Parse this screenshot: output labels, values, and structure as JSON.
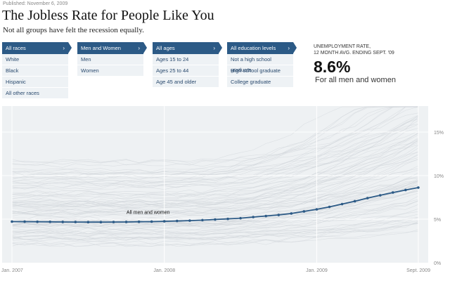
{
  "header": {
    "published": "Published: November 6, 2009",
    "title": "The Jobless Rate for People Like You",
    "subtitle": "Not all groups have felt the recession equally."
  },
  "filters": [
    {
      "selected": "All races",
      "options": [
        "White",
        "Black",
        "Hispanic",
        "All other races"
      ]
    },
    {
      "selected": "Men and Women",
      "options": [
        "Men",
        "Women"
      ]
    },
    {
      "selected": "All ages",
      "options": [
        "Ages 15 to 24",
        "Ages 25 to 44",
        "Age 45 and older"
      ]
    },
    {
      "selected": "All education levels",
      "options": [
        "Not a high school graduate",
        "High school graduate",
        "College graduate"
      ]
    }
  ],
  "icons": {
    "chevron": "›"
  },
  "stat": {
    "label_line1": "UNEMPLOYMENT RATE,",
    "label_line2": "12 MONTH AVG. ENDING SEPT. '09",
    "value": "8.6%",
    "description": "For all men and women"
  },
  "colors": {
    "accent": "#2c5a86",
    "chart_bg": "#eef1f3",
    "menu_item_bg": "#eef2f5"
  },
  "chart_data": {
    "type": "line",
    "title": "",
    "xlabel": "",
    "ylabel": "Unemployment rate",
    "ylim": [
      0,
      18
    ],
    "yticks": [
      {
        "value": 0,
        "label": "0%"
      },
      {
        "value": 5,
        "label": "5%"
      },
      {
        "value": 10,
        "label": "10%"
      },
      {
        "value": 15,
        "label": "15%"
      }
    ],
    "xticks": [
      {
        "index": 0,
        "label": "Jan. 2007"
      },
      {
        "index": 12,
        "label": "Jan. 2008"
      },
      {
        "index": 24,
        "label": "Jan. 2009"
      },
      {
        "index": 32,
        "label": "Sept. 2009"
      }
    ],
    "grid": true,
    "x": [
      "2007-01",
      "2007-02",
      "2007-03",
      "2007-04",
      "2007-05",
      "2007-06",
      "2007-07",
      "2007-08",
      "2007-09",
      "2007-10",
      "2007-11",
      "2007-12",
      "2008-01",
      "2008-02",
      "2008-03",
      "2008-04",
      "2008-05",
      "2008-06",
      "2008-07",
      "2008-08",
      "2008-09",
      "2008-10",
      "2008-11",
      "2008-12",
      "2009-01",
      "2009-02",
      "2009-03",
      "2009-04",
      "2009-05",
      "2009-06",
      "2009-07",
      "2009-08",
      "2009-09"
    ],
    "series": [
      {
        "name": "All men and women",
        "color": "#2c5a86",
        "highlighted": true,
        "values": [
          4.72,
          4.71,
          4.7,
          4.69,
          4.68,
          4.67,
          4.66,
          4.66,
          4.67,
          4.68,
          4.7,
          4.72,
          4.75,
          4.79,
          4.83,
          4.89,
          4.96,
          5.03,
          5.11,
          5.24,
          5.36,
          5.48,
          5.65,
          5.89,
          6.13,
          6.41,
          6.73,
          7.06,
          7.42,
          7.74,
          8.06,
          8.35,
          8.63
        ]
      }
    ],
    "background_series_note": "Many faint gray lines for other demographic groups, roughly spanning 2% to 18%",
    "annotations": [
      {
        "text": "All men and women",
        "index": 11
      }
    ]
  }
}
